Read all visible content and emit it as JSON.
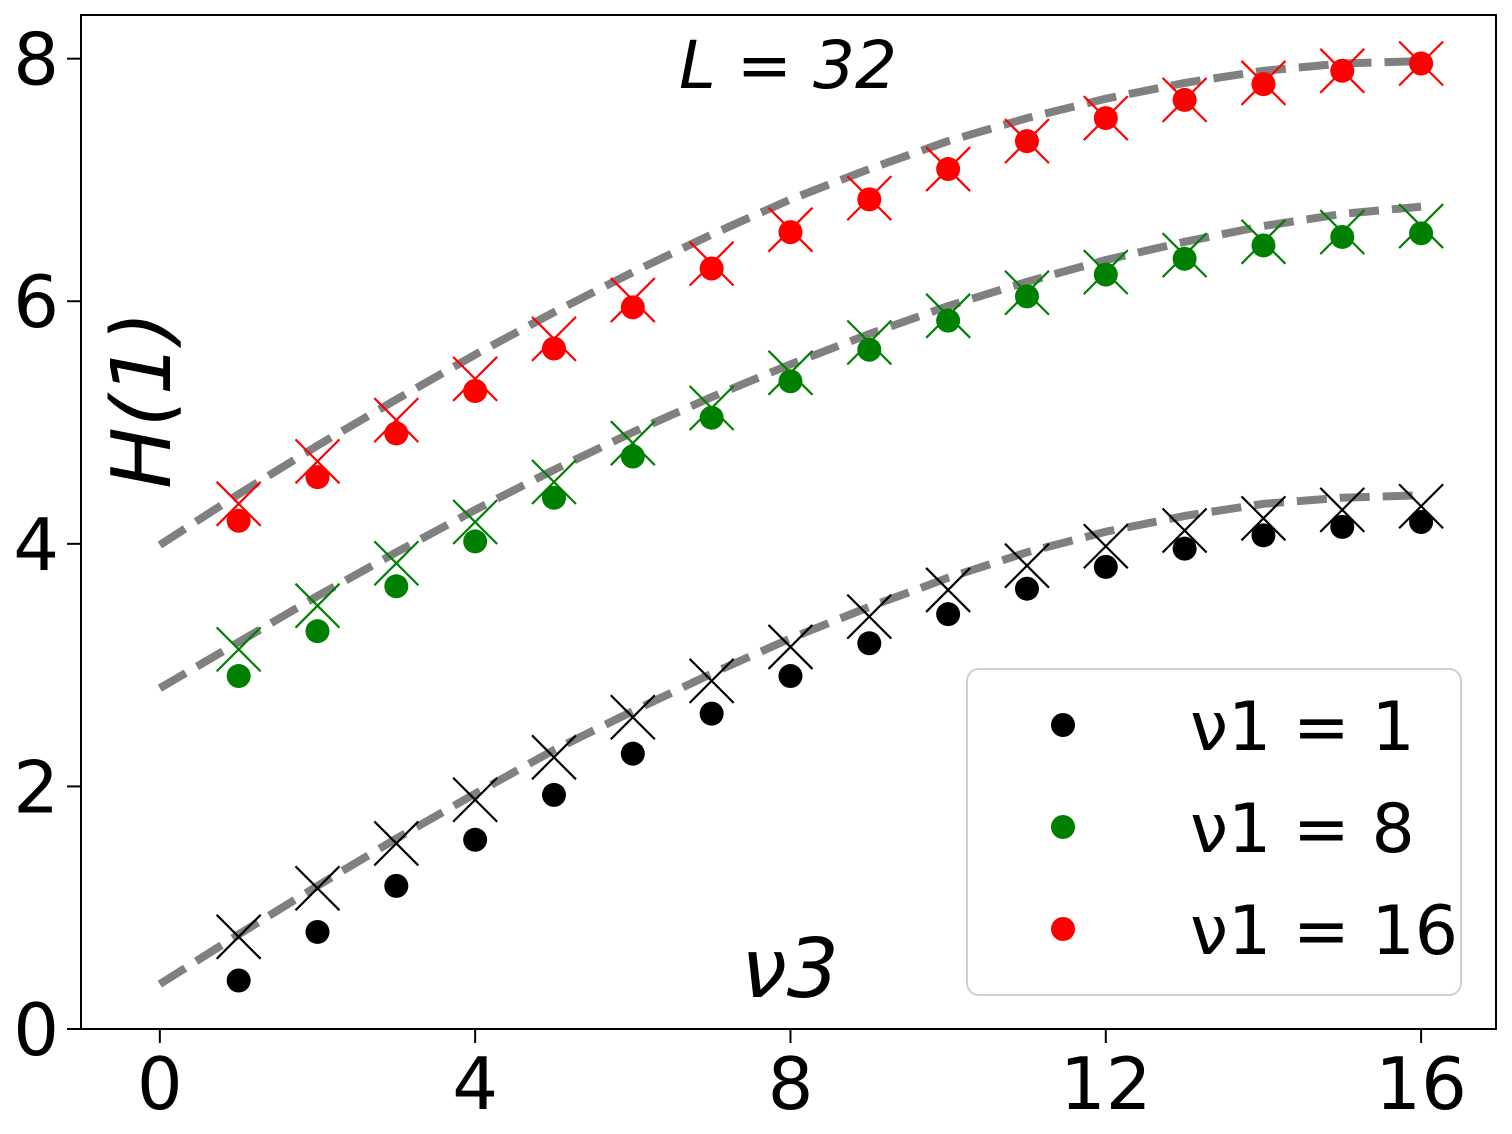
{
  "chart_data": {
    "type": "scatter",
    "annotation": "L = 32",
    "xlabel": "ν3",
    "ylabel": "H(1)",
    "xlim": [
      -1,
      16.95
    ],
    "ylim": [
      0,
      8.36
    ],
    "xticks": [
      0,
      4,
      8,
      12,
      16
    ],
    "yticks": [
      0,
      2,
      4,
      6,
      8
    ],
    "grid": false,
    "legend_position": "lower-right",
    "series": [
      {
        "name": "ν1 = 1",
        "color": "#000000",
        "x": [
          1,
          2,
          3,
          4,
          5,
          6,
          7,
          8,
          9,
          10,
          11,
          12,
          13,
          14,
          15,
          16
        ],
        "circles": [
          0.4,
          0.8,
          1.18,
          1.56,
          1.93,
          2.27,
          2.6,
          2.91,
          3.18,
          3.42,
          3.63,
          3.81,
          3.96,
          4.07,
          4.14,
          4.18
        ],
        "crosses": [
          0.76,
          1.16,
          1.53,
          1.89,
          2.24,
          2.57,
          2.87,
          3.15,
          3.4,
          3.62,
          3.82,
          3.98,
          4.11,
          4.21,
          4.28,
          4.31
        ]
      },
      {
        "name": "ν1 = 8",
        "color": "#008000",
        "x": [
          1,
          2,
          3,
          4,
          5,
          6,
          7,
          8,
          9,
          10,
          11,
          12,
          13,
          14,
          15,
          16
        ],
        "circles": [
          2.91,
          3.28,
          3.65,
          4.02,
          4.38,
          4.72,
          5.04,
          5.34,
          5.6,
          5.84,
          6.04,
          6.22,
          6.35,
          6.46,
          6.53,
          6.56
        ],
        "crosses": [
          3.13,
          3.49,
          3.84,
          4.18,
          4.51,
          4.83,
          5.12,
          5.41,
          5.66,
          5.88,
          6.07,
          6.24,
          6.38,
          6.49,
          6.57,
          6.62
        ]
      },
      {
        "name": "ν1 = 16",
        "color": "#ff0000",
        "x": [
          1,
          2,
          3,
          4,
          5,
          6,
          7,
          8,
          9,
          10,
          11,
          12,
          13,
          14,
          15,
          16
        ],
        "circles": [
          4.19,
          4.55,
          4.91,
          5.26,
          5.61,
          5.95,
          6.27,
          6.57,
          6.84,
          7.09,
          7.32,
          7.51,
          7.66,
          7.79,
          7.9,
          7.96
        ],
        "crosses": [
          4.33,
          4.68,
          5.02,
          5.36,
          5.69,
          6.01,
          6.31,
          6.59,
          6.85,
          7.09,
          7.32,
          7.51,
          7.66,
          7.8,
          7.9,
          7.96
        ]
      }
    ],
    "fit_curves": {
      "style": "dashed",
      "color": "#808080",
      "x": [
        0,
        1,
        2,
        3,
        4,
        5,
        6,
        7,
        8,
        9,
        10,
        11,
        12,
        13,
        14,
        15,
        16
      ],
      "curves": [
        [
          0.37,
          0.78,
          1.18,
          1.57,
          1.94,
          2.3,
          2.62,
          2.93,
          3.22,
          3.48,
          3.72,
          3.93,
          4.1,
          4.23,
          4.33,
          4.38,
          4.4
        ],
        [
          2.81,
          3.19,
          3.57,
          3.93,
          4.28,
          4.61,
          4.92,
          5.21,
          5.48,
          5.73,
          5.96,
          6.16,
          6.34,
          6.49,
          6.62,
          6.72,
          6.78
        ],
        [
          3.99,
          4.41,
          4.81,
          5.19,
          5.56,
          5.91,
          6.24,
          6.55,
          6.84,
          7.09,
          7.32,
          7.51,
          7.67,
          7.8,
          7.9,
          7.96,
          7.98
        ]
      ]
    }
  }
}
